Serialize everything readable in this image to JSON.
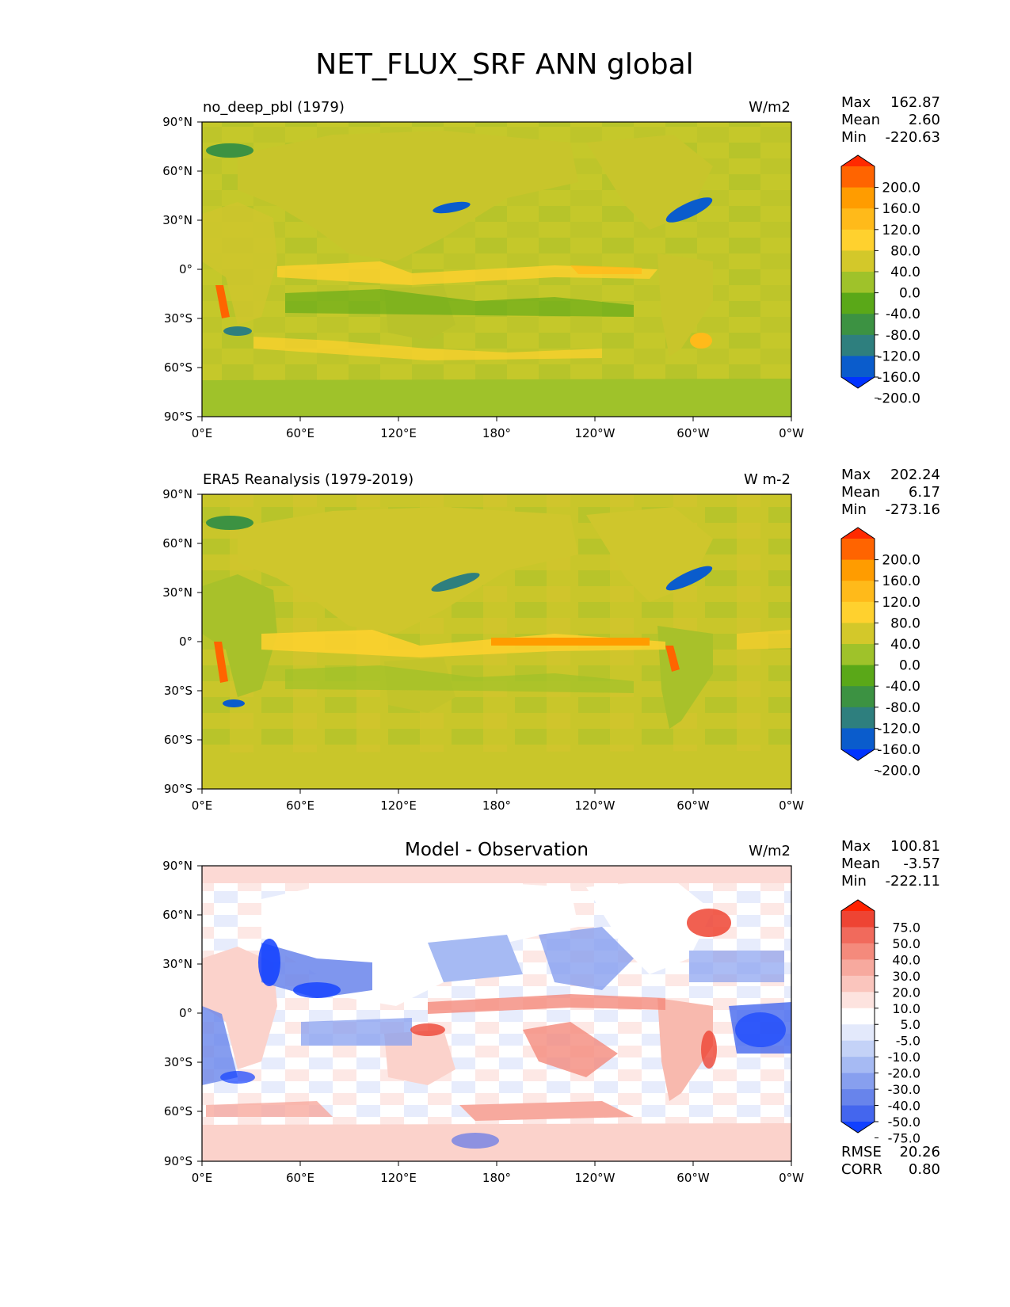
{
  "figure": {
    "title": "NET_FLUX_SRF ANN global"
  },
  "chart_data": [
    {
      "type": "heatmap",
      "title": "no_deep_pbl (1979)",
      "units": "W/m2",
      "xlabel": "",
      "ylabel": "",
      "xlim": [
        0,
        360
      ],
      "ylim": [
        -90,
        90
      ],
      "x_ticks": [
        "0°E",
        "60°E",
        "120°E",
        "180°",
        "120°W",
        "60°W",
        "0°W"
      ],
      "y_ticks": [
        "90°N",
        "60°N",
        "30°N",
        "0°",
        "30°S",
        "60°S",
        "90°S"
      ],
      "stats": [
        {
          "label": "Max",
          "value": "162.87"
        },
        {
          "label": "Mean",
          "value": "2.60"
        },
        {
          "label": "Min",
          "value": "-220.63"
        }
      ],
      "colorbar": {
        "levels": [
          "200.0",
          "160.0",
          "120.0",
          "80.0",
          "40.0",
          "0.0",
          "-40.0",
          "-80.0",
          "-120.0",
          "-160.0",
          "-200.0"
        ],
        "colors": [
          "#ff2a00",
          "#ff6400",
          "#ff9c00",
          "#ffba1a",
          "#ffd12e",
          "#d3c82a",
          "#9fc22a",
          "#5aa818",
          "#3c9242",
          "#2e7f7e",
          "#0a5ccc",
          "#0033ff"
        ]
      }
    },
    {
      "type": "heatmap",
      "title": "ERA5 Reanalysis (1979-2019)",
      "units": "W m-2",
      "xlabel": "",
      "ylabel": "",
      "xlim": [
        0,
        360
      ],
      "ylim": [
        -90,
        90
      ],
      "x_ticks": [
        "0°E",
        "60°E",
        "120°E",
        "180°",
        "120°W",
        "60°W",
        "0°W"
      ],
      "y_ticks": [
        "90°N",
        "60°N",
        "30°N",
        "0°",
        "30°S",
        "60°S",
        "90°S"
      ],
      "stats": [
        {
          "label": "Max",
          "value": "202.24"
        },
        {
          "label": "Mean",
          "value": "6.17"
        },
        {
          "label": "Min",
          "value": "-273.16"
        }
      ],
      "colorbar": {
        "levels": [
          "200.0",
          "160.0",
          "120.0",
          "80.0",
          "40.0",
          "0.0",
          "-40.0",
          "-80.0",
          "-120.0",
          "-160.0",
          "-200.0"
        ],
        "colors": [
          "#ff2a00",
          "#ff6400",
          "#ff9c00",
          "#ffba1a",
          "#ffd12e",
          "#d3c82a",
          "#9fc22a",
          "#5aa818",
          "#3c9242",
          "#2e7f7e",
          "#0a5ccc",
          "#0033ff"
        ]
      }
    },
    {
      "type": "heatmap",
      "title": "Model - Observation",
      "units": "W/m2",
      "xlabel": "",
      "ylabel": "",
      "xlim": [
        0,
        360
      ],
      "ylim": [
        -90,
        90
      ],
      "x_ticks": [
        "0°E",
        "60°E",
        "120°E",
        "180°",
        "120°W",
        "60°W",
        "0°W"
      ],
      "y_ticks": [
        "90°N",
        "60°N",
        "30°N",
        "0°",
        "30°S",
        "60°S",
        "90°S"
      ],
      "stats": [
        {
          "label": "Max",
          "value": "100.81"
        },
        {
          "label": "Mean",
          "value": "-3.57"
        },
        {
          "label": "Min",
          "value": "-222.11"
        }
      ],
      "metrics": [
        {
          "label": "RMSE",
          "value": "20.26"
        },
        {
          "label": "CORR",
          "value": "0.80"
        }
      ],
      "colorbar": {
        "levels": [
          "75.0",
          "50.0",
          "40.0",
          "30.0",
          "20.0",
          "10.0",
          "5.0",
          "-5.0",
          "-10.0",
          "-20.0",
          "-30.0",
          "-40.0",
          "-50.0",
          "-75.0"
        ],
        "colors": [
          "#ff2200",
          "#ee4433",
          "#f16a5c",
          "#f48a7c",
          "#f7a99e",
          "#fac5bd",
          "#fde3df",
          "#ffffff",
          "#e3e9fb",
          "#c4d2f7",
          "#a6baf3",
          "#879fef",
          "#6884eb",
          "#4466ee",
          "#1140ff"
        ]
      }
    }
  ]
}
